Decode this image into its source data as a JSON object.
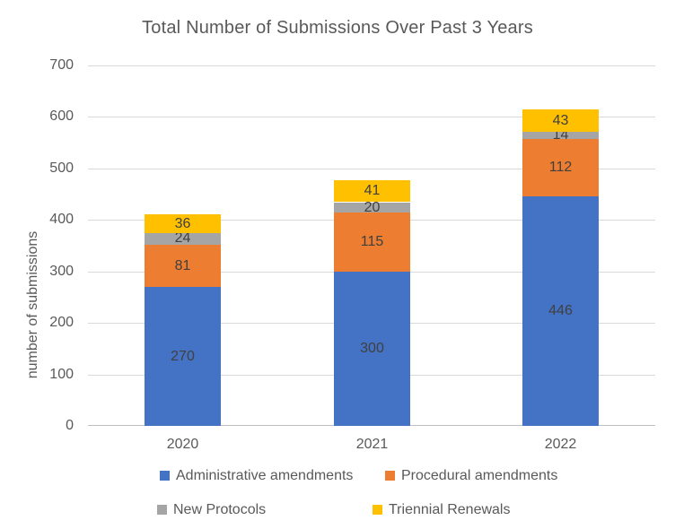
{
  "title": "Total Number of Submissions Over Past 3 Years",
  "chart_data": {
    "type": "bar",
    "stacked": true,
    "title": "Total Number of Submissions Over Past 3 Years",
    "xlabel": "",
    "ylabel": "number of submissions",
    "categories": [
      "2020",
      "2021",
      "2022"
    ],
    "series": [
      {
        "name": "Administrative amendments",
        "color": "#4472C4",
        "values": [
          270,
          300,
          446
        ]
      },
      {
        "name": "Procedural amendments",
        "color": "#ED7D31",
        "values": [
          81,
          115,
          112
        ]
      },
      {
        "name": "New Protocols",
        "color": "#A5A5A5",
        "values": [
          24,
          20,
          14
        ]
      },
      {
        "name": "Triennial Renewals",
        "color": "#FFC000",
        "values": [
          36,
          41,
          43
        ]
      }
    ],
    "totals": [
      411,
      476,
      615
    ],
    "ylim": [
      0,
      700
    ],
    "yticks": [
      0,
      100,
      200,
      300,
      400,
      500,
      600,
      700
    ],
    "grid": true,
    "data_labels": true,
    "legend_position": "bottom"
  },
  "colors": {
    "background": "#FFFFFF",
    "title_text": "#595959",
    "axis_text": "#595959",
    "data_label_text": "#404040",
    "gridline": "#D9D9D9",
    "axis_line": "#BFBFBF"
  }
}
